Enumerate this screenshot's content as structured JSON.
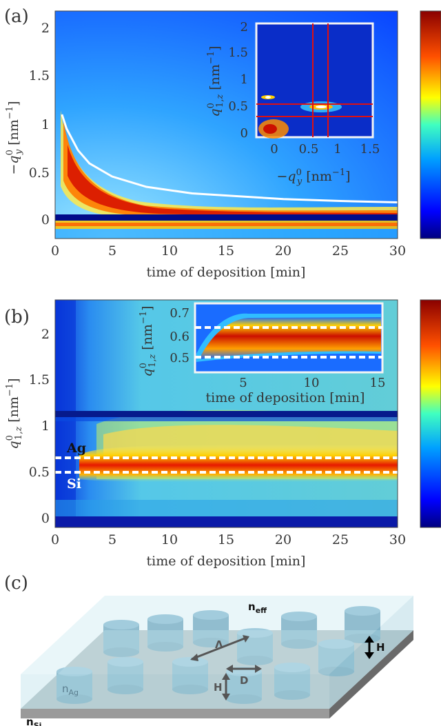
{
  "panels": {
    "a": "(a)",
    "b": "(b)",
    "c": "(c)"
  },
  "chart_data": [
    {
      "type": "heatmap",
      "panel": "(a)",
      "xlabel": "time of deposition [min]",
      "ylabel": "−q⁰_y [nm⁻¹]",
      "xlim": [
        0,
        30
      ],
      "ylim": [
        -0.22,
        2.2
      ],
      "xticks": [
        "0",
        "5",
        "10",
        "15",
        "20",
        "25",
        "30"
      ],
      "yticks": [
        "0",
        "0.5",
        "1",
        "1.5",
        "2"
      ],
      "colormap": "jet",
      "series": [
        {
          "x": [
            0.6,
            1,
            2,
            3,
            5,
            8,
            12,
            16,
            20,
            25,
            30
          ],
          "values": [
            1.1,
            0.95,
            0.72,
            0.58,
            0.44,
            0.33,
            0.26,
            0.23,
            0.2,
            0.18,
            0.165
          ]
        }
      ],
      "inset": {
        "xlabel": "−q⁰_y [nm⁻¹]",
        "ylabel": "q⁰_{1,z} [nm⁻¹]",
        "xticks": [
          "0",
          "0.5",
          "1",
          "1.5"
        ],
        "yticks": [
          "0",
          "0.5",
          "1",
          "1.5",
          "2"
        ],
        "xlim": [
          -0.2,
          1.5
        ],
        "ylim": [
          -0.1,
          2.05
        ],
        "lines_x": [
          0.6,
          0.82
        ],
        "lines_y": [
          0.35,
          0.55
        ]
      }
    },
    {
      "type": "heatmap",
      "panel": "(b)",
      "xlabel": "time of deposition [min]",
      "ylabel": "q⁰_{1,z} [nm⁻¹]",
      "xlim": [
        0,
        30
      ],
      "ylim": [
        -0.05,
        2.4
      ],
      "xticks": [
        "0",
        "5",
        "10",
        "15",
        "20",
        "25",
        "30"
      ],
      "yticks": [
        "0",
        "0.5",
        "1",
        "1.5",
        "2"
      ],
      "colormap": "jet",
      "annotations": [
        "Ag",
        "Si"
      ],
      "dashed_lines_y": [
        0.65,
        0.5
      ],
      "inset": {
        "xlabel": "time of deposition [min]",
        "ylabel": "q⁰_{1,z} [nm⁻¹]",
        "xticks": [
          "5",
          "10",
          "15"
        ],
        "yticks": [
          "0.5",
          "0.6",
          "0.7"
        ],
        "xlim": [
          1.5,
          15
        ],
        "ylim": [
          0.46,
          0.76
        ],
        "dashed_lines_y": [
          0.65,
          0.5
        ]
      }
    }
  ],
  "schematic": {
    "labels": {
      "neff": "n",
      "neff_sub": "eff",
      "nsi": "n",
      "nsi_sub": "Si",
      "nag": "n",
      "nag_sub": "Ag",
      "lambda": "Λ",
      "H1": "H",
      "H2": "H",
      "D": "D"
    },
    "colors": {
      "cylinder": "#5f98b3",
      "layer": "#bfe2ec",
      "substrate": "#8c8c8c"
    }
  }
}
